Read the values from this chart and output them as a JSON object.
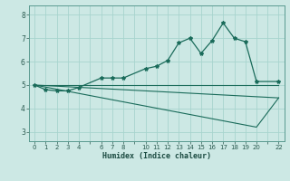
{
  "title": "",
  "xlabel": "Humidex (Indice chaleur)",
  "bg_color": "#cce8e4",
  "line_color": "#1a6b5a",
  "grid_color": "#a8d4ce",
  "xlim": [
    -0.5,
    22.5
  ],
  "ylim": [
    2.6,
    8.4
  ],
  "xticks": [
    0,
    1,
    2,
    3,
    4,
    5,
    6,
    7,
    8,
    9,
    10,
    11,
    12,
    13,
    14,
    15,
    16,
    17,
    18,
    19,
    20,
    21,
    22
  ],
  "xtick_labels": [
    "0",
    "1",
    "2",
    "3",
    "4",
    "",
    "6",
    "7",
    "8",
    "",
    "10",
    "11",
    "12",
    "13",
    "14",
    "15",
    "16",
    "17",
    "18",
    "19",
    "20",
    "",
    "22"
  ],
  "yticks": [
    3,
    4,
    5,
    6,
    7,
    8
  ],
  "line1_x": [
    0,
    1,
    2,
    3,
    4,
    6,
    7,
    8,
    10,
    11,
    12,
    13,
    14,
    15,
    16,
    17,
    18,
    19,
    20,
    22
  ],
  "line1_y": [
    5.0,
    4.8,
    4.75,
    4.75,
    4.9,
    5.3,
    5.3,
    5.3,
    5.7,
    5.8,
    6.05,
    6.8,
    7.0,
    6.35,
    6.9,
    7.65,
    7.0,
    6.85,
    5.15,
    5.15
  ],
  "line2_x": [
    0,
    22
  ],
  "line2_y": [
    5.0,
    5.0
  ],
  "line3_x": [
    0,
    22
  ],
  "line3_y": [
    5.0,
    4.45
  ],
  "line4_x": [
    0,
    20,
    22
  ],
  "line4_y": [
    5.0,
    3.2,
    4.45
  ]
}
